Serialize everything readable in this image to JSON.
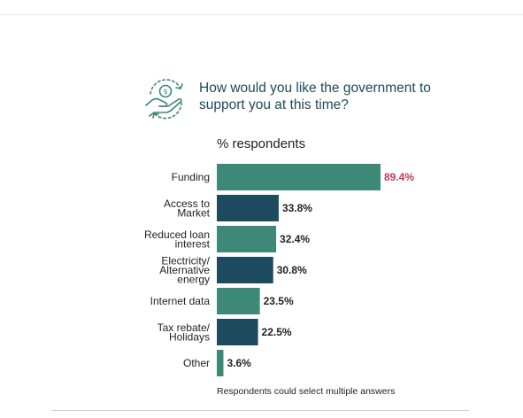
{
  "title": "How would you like the government to support you at this time?",
  "unit_label": "% respondents",
  "note": "Respondents could select multiple answers",
  "colors": {
    "teal": "#3d8876",
    "navy": "#1d4a5e",
    "highlight_text": "#c23a55",
    "label_text": "#222222"
  },
  "icon": "hand-holding-coin-icon",
  "chart_data": {
    "type": "bar",
    "orientation": "horizontal",
    "title": "How would you like the government to support you at this time?",
    "xlabel": "% respondents",
    "xlim": [
      0,
      100
    ],
    "categories": [
      [
        "Funding"
      ],
      [
        "Access to",
        "Market"
      ],
      [
        "Reduced loan",
        "interest"
      ],
      [
        "Electricity/",
        "Alternative",
        "energy"
      ],
      [
        "Internet data"
      ],
      [
        "Tax rebate/",
        "Holidays"
      ],
      [
        "Other"
      ]
    ],
    "values": [
      89.4,
      33.8,
      32.4,
      30.8,
      23.5,
      22.5,
      3.6
    ],
    "value_labels": [
      "89.4%",
      "33.8%",
      "32.4%",
      "30.8%",
      "23.5%",
      "22.5%",
      "3.6%"
    ],
    "bar_colors": [
      "teal",
      "navy",
      "teal",
      "navy",
      "teal",
      "navy",
      "teal"
    ],
    "highlight_index": 0,
    "grid": false,
    "legend": "none"
  }
}
